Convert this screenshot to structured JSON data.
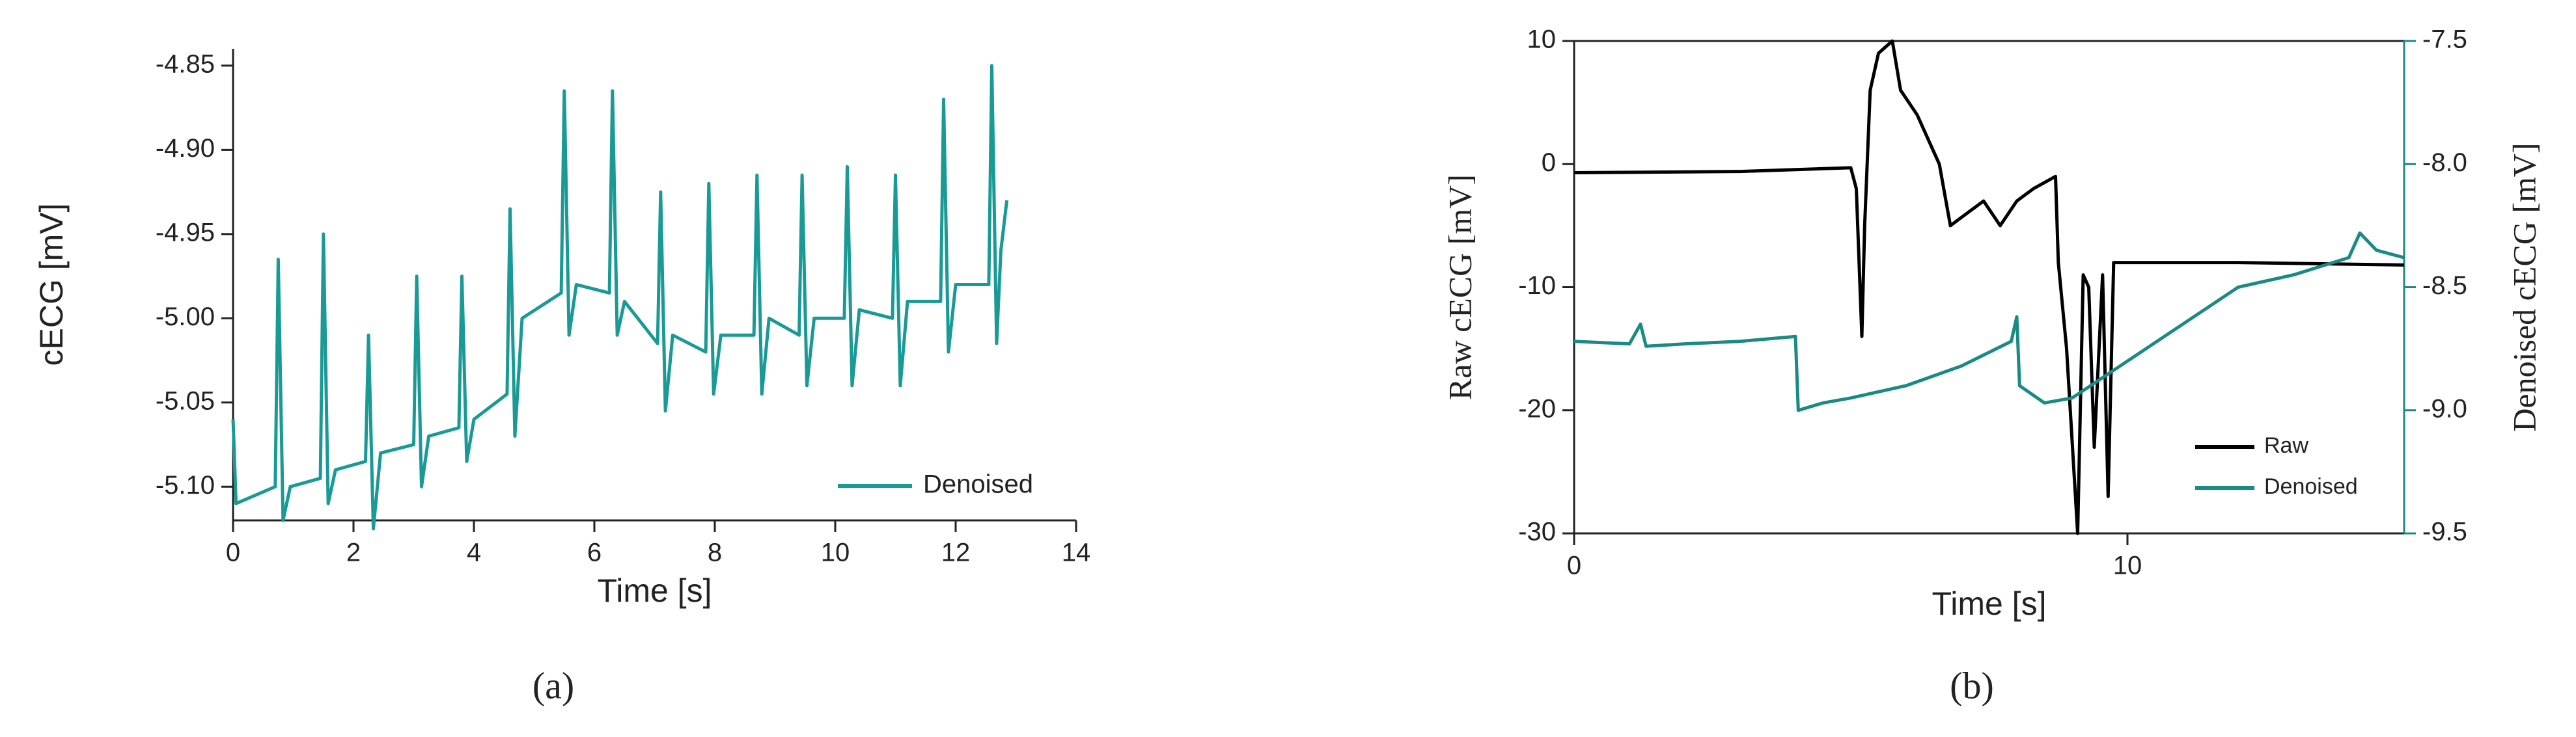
{
  "chart_data": [
    {
      "type": "line",
      "caption": "(a)",
      "x_label": "Time [s]",
      "y_label": "cECG [mV]",
      "xlim": [
        0,
        14
      ],
      "xticks": [
        0,
        2,
        4,
        6,
        8,
        10,
        12,
        14
      ],
      "ylim": [
        -5.12,
        -4.84
      ],
      "yticks": [
        -4.85,
        {
          "value": -4.9,
          "label": "-4.90"
        },
        -4.95,
        {
          "value": -5.0,
          "label": "-5.00"
        },
        -5.05,
        {
          "value": -5.1,
          "label": "-5.10"
        }
      ],
      "legend": "lower right",
      "series": [
        {
          "name": "Denoised",
          "color": "#1a9a96",
          "x": [
            0.0,
            0.05,
            0.7,
            0.75,
            0.83,
            0.95,
            1.45,
            1.5,
            1.58,
            1.7,
            2.2,
            2.25,
            2.33,
            2.45,
            3.0,
            3.05,
            3.13,
            3.25,
            3.75,
            3.8,
            3.88,
            4.0,
            4.55,
            4.6,
            4.68,
            4.8,
            5.45,
            5.5,
            5.58,
            5.7,
            6.25,
            6.3,
            6.38,
            6.5,
            7.05,
            7.1,
            7.18,
            7.3,
            7.85,
            7.9,
            7.98,
            8.1,
            8.65,
            8.7,
            8.78,
            8.9,
            9.4,
            9.45,
            9.53,
            9.65,
            10.15,
            10.2,
            10.28,
            10.4,
            10.95,
            11.0,
            11.08,
            11.2,
            11.75,
            11.8,
            11.88,
            12.0,
            12.55,
            12.6,
            12.68,
            12.75,
            12.85
          ],
          "values": [
            -5.06,
            -5.11,
            -5.1,
            -4.965,
            -5.12,
            -5.1,
            -5.095,
            -4.95,
            -5.11,
            -5.09,
            -5.085,
            -5.01,
            -5.125,
            -5.08,
            -5.075,
            -4.975,
            -5.1,
            -5.07,
            -5.065,
            -4.975,
            -5.085,
            -5.06,
            -5.045,
            -4.935,
            -5.07,
            -5.0,
            -4.985,
            -4.865,
            -5.01,
            -4.98,
            -4.985,
            -4.865,
            -5.01,
            -4.99,
            -5.015,
            -4.925,
            -5.055,
            -5.01,
            -5.02,
            -4.92,
            -5.045,
            -5.01,
            -5.01,
            -4.915,
            -5.045,
            -5.0,
            -5.01,
            -4.915,
            -5.04,
            -5.0,
            -5.0,
            -4.91,
            -5.04,
            -4.995,
            -5.0,
            -4.915,
            -5.04,
            -4.99,
            -4.99,
            -4.87,
            -5.02,
            -4.98,
            -4.98,
            -4.85,
            -5.015,
            -4.96,
            -4.93
          ]
        }
      ]
    },
    {
      "type": "line",
      "caption": "(b)",
      "x_label": "Time [s]",
      "y_label": "Raw cECG [mV]",
      "y2_label": "Denoised cECG [mV]",
      "xlim": [
        0,
        15
      ],
      "xticks": [
        0,
        10
      ],
      "ylim": [
        -30,
        10
      ],
      "yticks": [
        -30,
        -20,
        -10,
        0,
        10
      ],
      "y2lim": [
        -9.5,
        -7.5
      ],
      "y2ticks": [
        -9.5,
        {
          "value": -9.0,
          "label": "-9.0"
        },
        -8.5,
        {
          "value": -8.0,
          "label": "-8.0"
        },
        -7.5
      ],
      "legend": "lower right",
      "series": [
        {
          "name": "Raw",
          "color": "#000000",
          "x": [
            0,
            3,
            5,
            5.1,
            5.2,
            5.25,
            5.35,
            5.5,
            5.75,
            5.9,
            6.2,
            6.6,
            6.8,
            7.1,
            7.4,
            7.7,
            8.0,
            8.3,
            8.7,
            8.75,
            8.9,
            9.1,
            9.2,
            9.3,
            9.4,
            9.55,
            9.65,
            9.75,
            10.2,
            12,
            15
          ],
          "values": [
            -0.7,
            -0.6,
            -0.3,
            -2,
            -14,
            -5,
            6,
            9,
            10,
            6,
            4,
            0,
            -5,
            -4,
            -3,
            -5,
            -3,
            -2,
            -1,
            -8,
            -15,
            -30,
            -9,
            -10,
            -23,
            -9,
            -27,
            -8,
            -8,
            -8,
            -8.2
          ]
        },
        {
          "name": "Denoised",
          "color": "#1a8a84",
          "axis": "y2",
          "x": [
            0,
            1,
            1.2,
            1.3,
            2,
            3,
            4,
            4.05,
            4.5,
            5,
            6,
            7,
            7.9,
            8,
            8.05,
            8.5,
            9,
            10,
            11,
            12,
            13,
            14,
            14.2,
            14.5,
            15
          ],
          "values": [
            -8.72,
            -8.73,
            -8.65,
            -8.74,
            -8.73,
            -8.72,
            -8.7,
            -9.0,
            -8.97,
            -8.95,
            -8.9,
            -8.82,
            -8.72,
            -8.62,
            -8.9,
            -8.97,
            -8.95,
            -8.8,
            -8.65,
            -8.5,
            -8.45,
            -8.38,
            -8.28,
            -8.35,
            -8.38
          ]
        }
      ]
    }
  ]
}
